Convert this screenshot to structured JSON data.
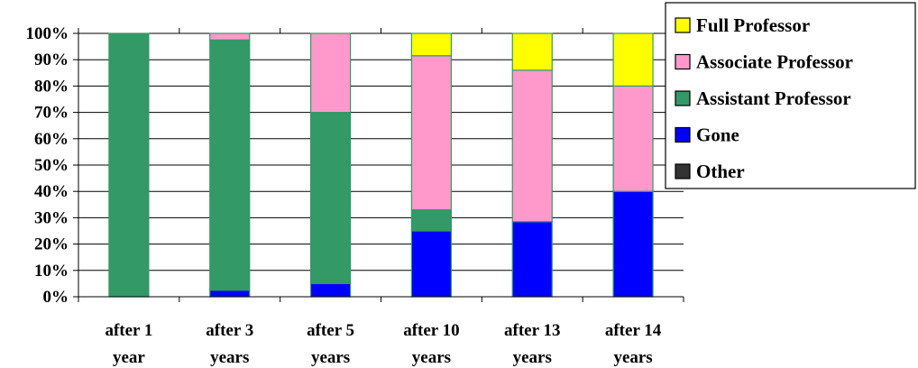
{
  "chart_data": {
    "type": "bar",
    "stacked": true,
    "categories": [
      [
        "after 1",
        "year"
      ],
      [
        "after 3",
        "years"
      ],
      [
        "after 5",
        "years"
      ],
      [
        "after 10",
        "years"
      ],
      [
        "after 13",
        "years"
      ],
      [
        "after 14",
        "years"
      ]
    ],
    "series": [
      {
        "name": "Other",
        "color": "#333333",
        "values": [
          0,
          0,
          0,
          0,
          0,
          0
        ]
      },
      {
        "name": "Gone",
        "color": "#0000ff",
        "values": [
          0,
          2.5,
          5,
          25,
          28.5,
          40
        ]
      },
      {
        "name": "Assistant Professor",
        "color": "#339966",
        "values": [
          100,
          95,
          65,
          8,
          0,
          0
        ]
      },
      {
        "name": "Associate Professor",
        "color": "#ff99cc",
        "values": [
          0,
          2.5,
          30,
          58.5,
          57.5,
          40
        ]
      },
      {
        "name": "Full Professor",
        "color": "#ffff00",
        "values": [
          0,
          0,
          0,
          8.5,
          14,
          20
        ]
      }
    ],
    "y_ticks": [
      "0%",
      "10%",
      "20%",
      "30%",
      "40%",
      "50%",
      "60%",
      "70%",
      "80%",
      "90%",
      "100%"
    ],
    "ylim": [
      0,
      100
    ],
    "grid": true,
    "legend_position": "top-right",
    "legend_order": [
      "Full Professor",
      "Associate Professor",
      "Assistant Professor",
      "Gone",
      "Other"
    ],
    "title": "",
    "xlabel": "",
    "ylabel": ""
  }
}
